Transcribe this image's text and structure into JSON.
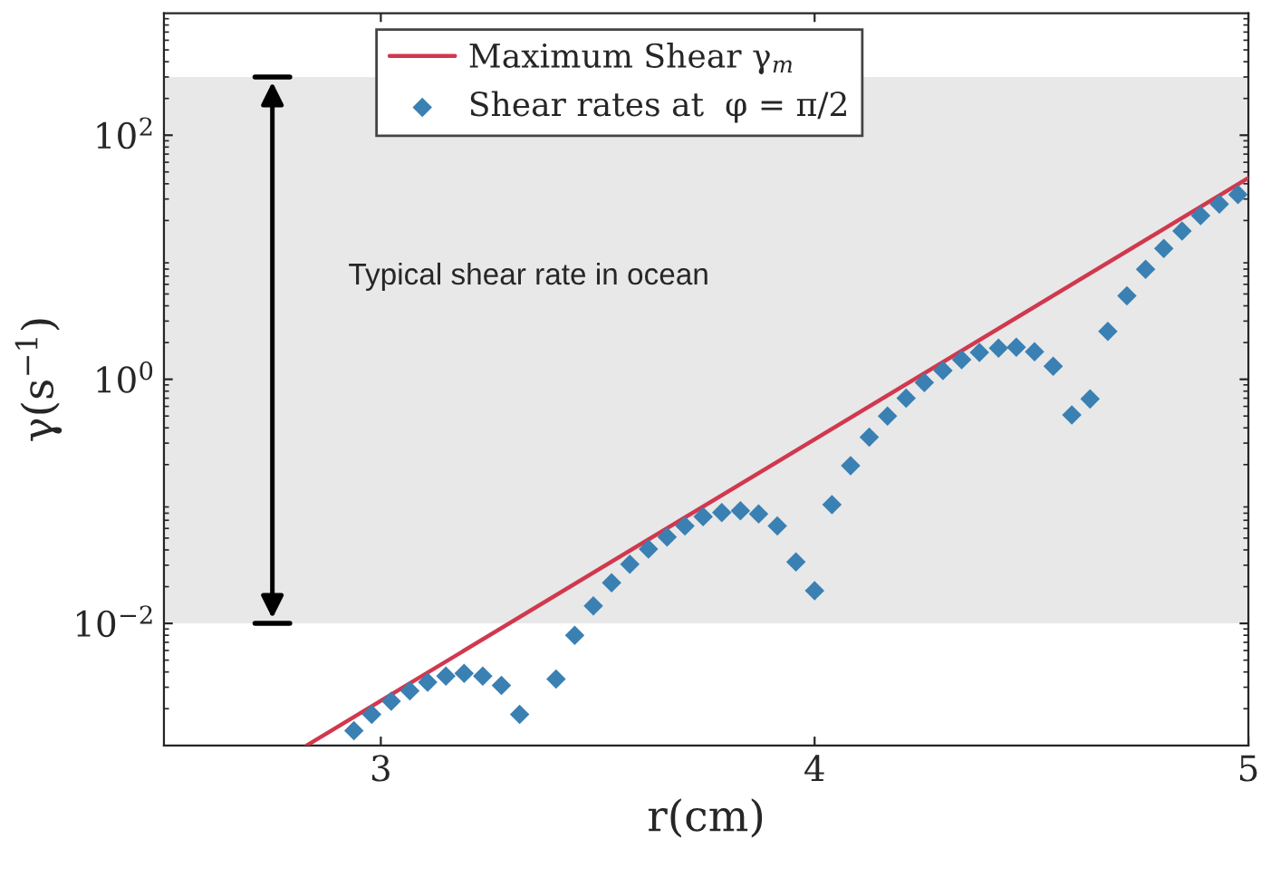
{
  "chart_data": {
    "type": "scatter",
    "xlabel": "r(cm)",
    "ylabel": "γ(s$^{−1}$)",
    "xlim": [
      2.5,
      5
    ],
    "xticks": [
      3,
      4,
      5
    ],
    "ylim": [
      0.001,
      1000
    ],
    "yticks": [
      {
        "value": 0.01,
        "label": "10$^{−2}$"
      },
      {
        "value": 1,
        "label": "10$^{0}$"
      },
      {
        "value": 100,
        "label": "10$^{2}$"
      }
    ],
    "log": "y",
    "grid": false,
    "legend": "top",
    "bands": [
      {
        "axis": "y",
        "from": 0.01,
        "to": 300,
        "label": "Typical shear rate in ocean",
        "color": "#e8e8e8"
      }
    ],
    "series": [
      {
        "name": "Maximum Shear γ$_{m}$",
        "type": "line",
        "color": "#d1384e",
        "line_style": "solid",
        "x": [
          2.829,
          5
        ],
        "values": [
          0.001,
          44.6
        ]
      },
      {
        "name": "Shear rates at  φ = π/2",
        "color": "#3a80b3",
        "marker": "diamond",
        "x": [
          2.938,
          2.979,
          3.024,
          3.067,
          3.108,
          3.15,
          3.192,
          3.235,
          3.278,
          3.32,
          3.404,
          3.447,
          3.49,
          3.532,
          3.574,
          3.617,
          3.66,
          3.701,
          3.743,
          3.786,
          3.829,
          3.871,
          3.914,
          3.957,
          4.0,
          4.04,
          4.083,
          4.126,
          4.168,
          4.211,
          4.253,
          4.296,
          4.339,
          4.38,
          4.424,
          4.465,
          4.507,
          4.55,
          4.593,
          4.635,
          4.676,
          4.72,
          4.763,
          4.805,
          4.847,
          4.89,
          4.933,
          4.976
        ],
        "values": [
          0.00132,
          0.0018,
          0.0023,
          0.0028,
          0.0033,
          0.0037,
          0.0039,
          0.0037,
          0.0031,
          0.0018,
          0.0035,
          0.008,
          0.0139,
          0.0215,
          0.0306,
          0.0406,
          0.051,
          0.0628,
          0.0748,
          0.081,
          0.0836,
          0.079,
          0.0628,
          0.0319,
          0.0185,
          0.094,
          0.196,
          0.336,
          0.5,
          0.7,
          0.94,
          1.18,
          1.45,
          1.66,
          1.8,
          1.83,
          1.68,
          1.28,
          0.51,
          0.69,
          2.47,
          4.83,
          7.98,
          11.8,
          16.4,
          21.9,
          27.3,
          32.7
        ]
      }
    ]
  }
}
